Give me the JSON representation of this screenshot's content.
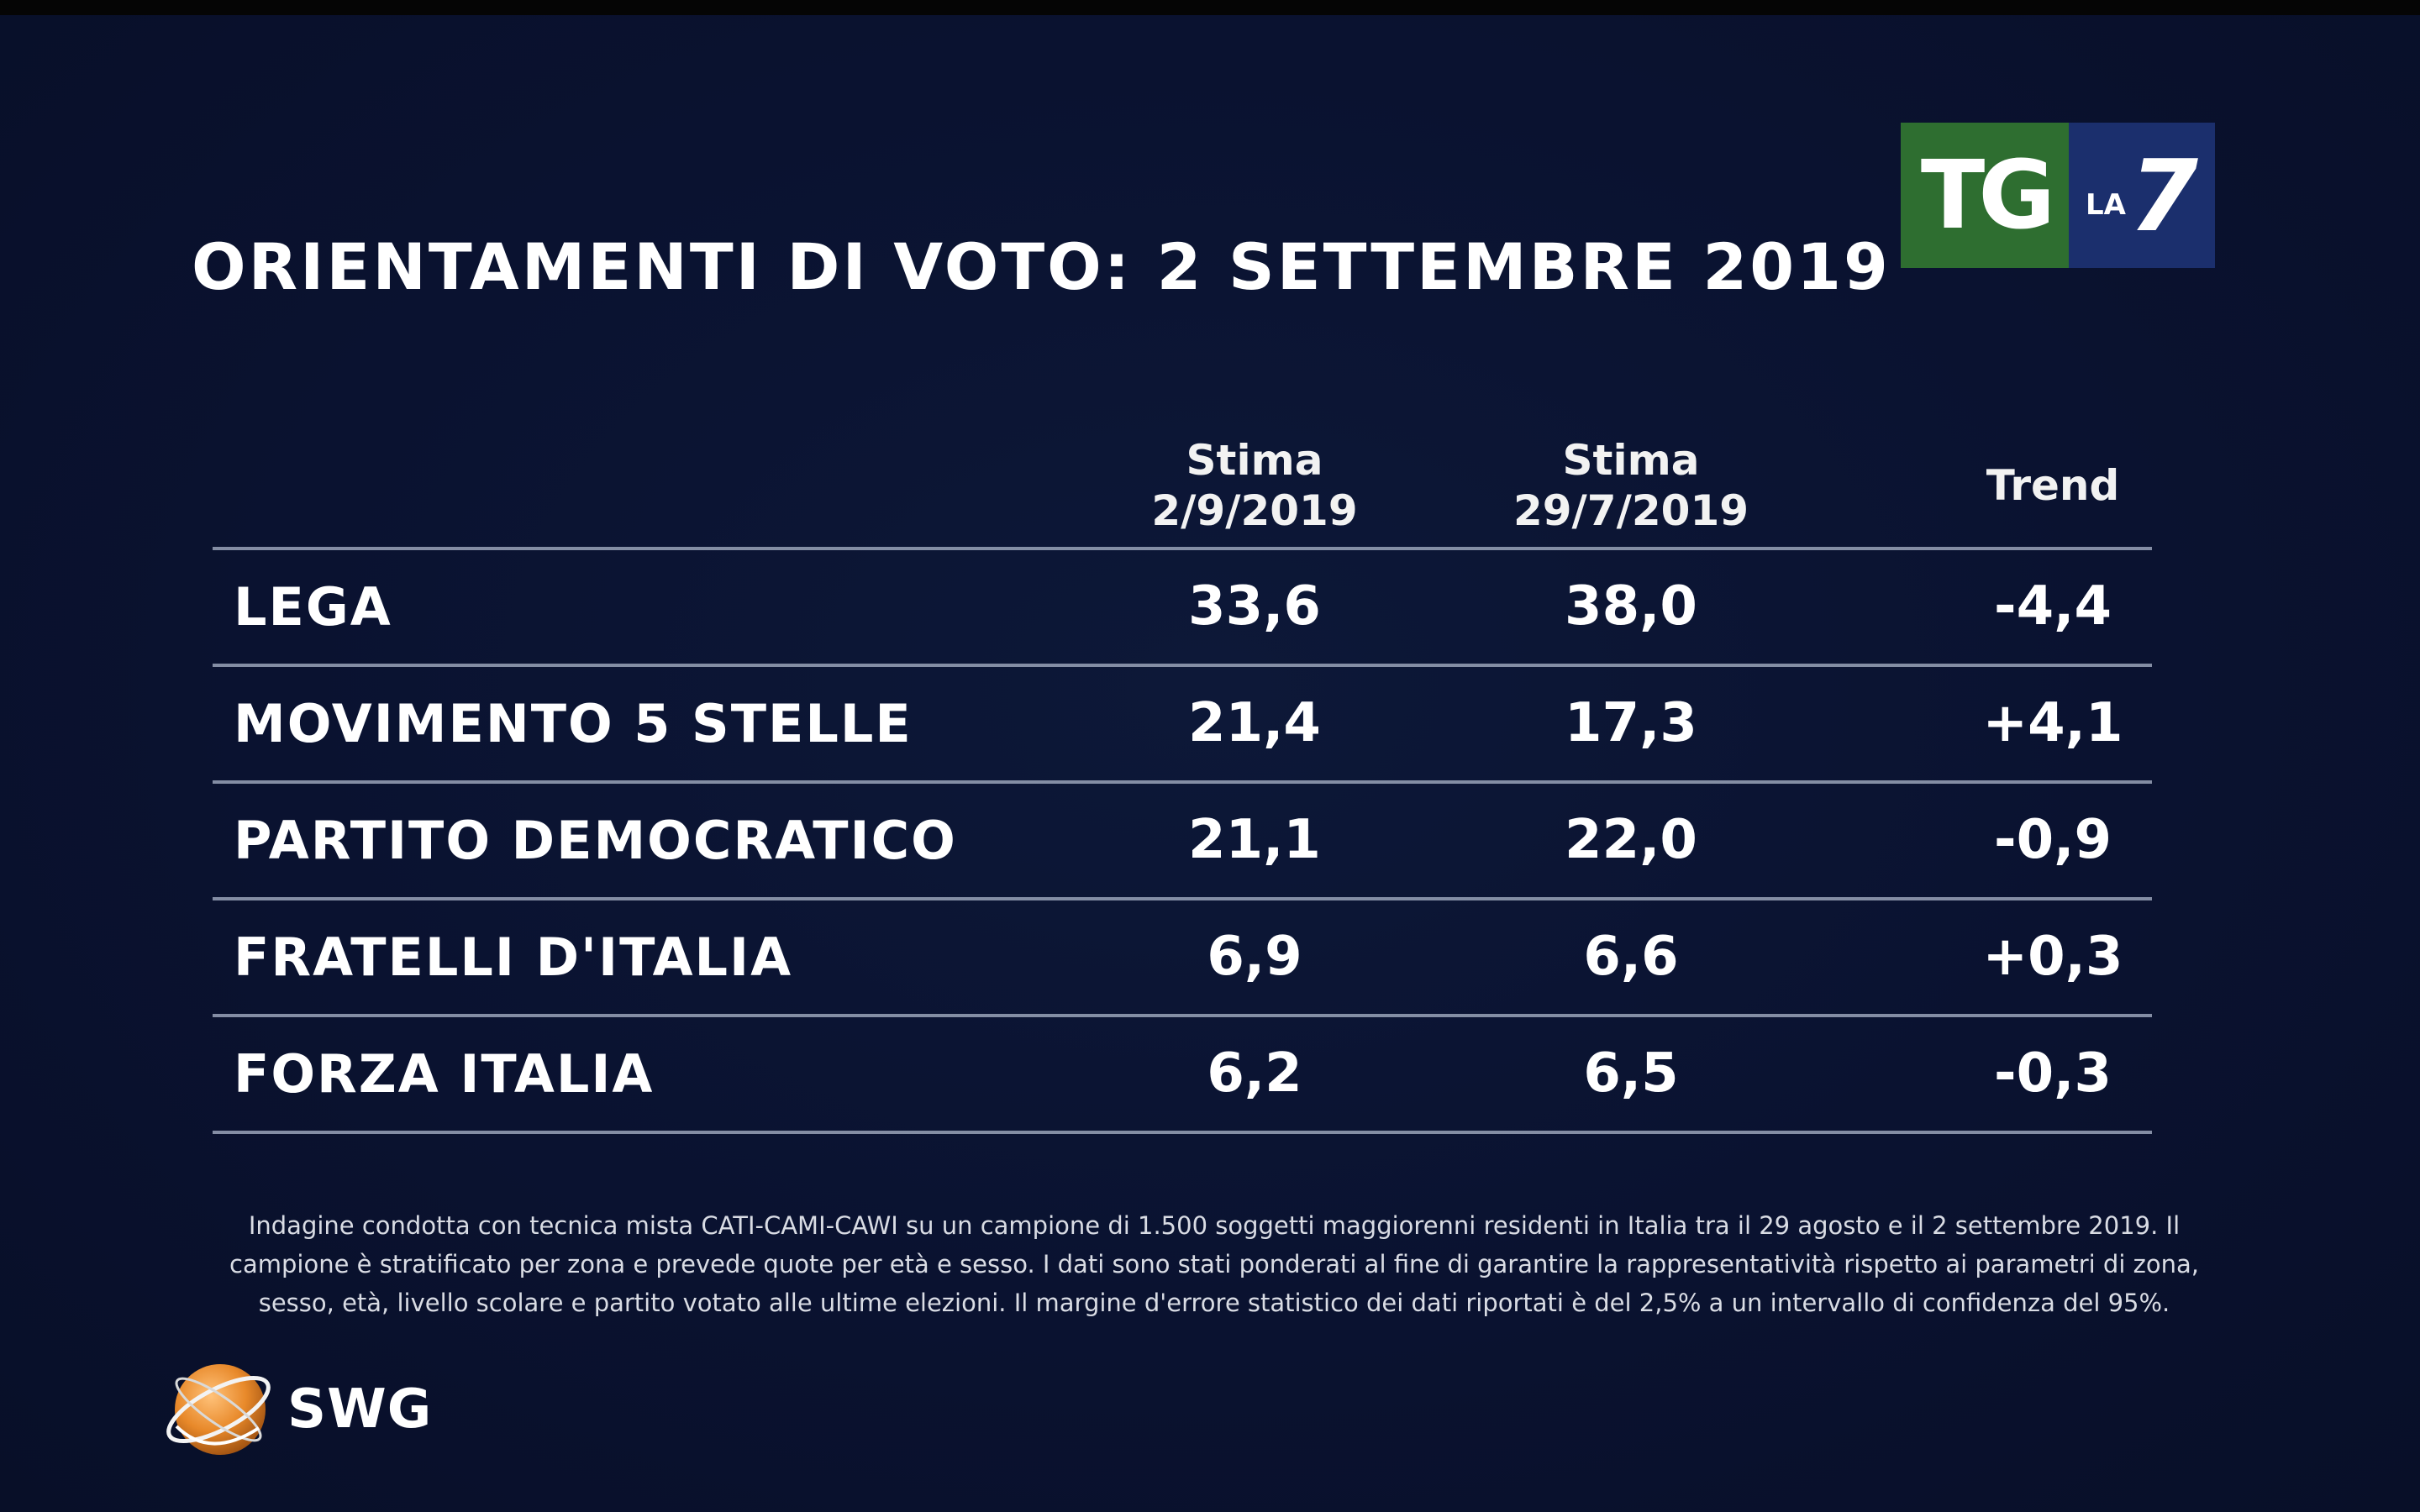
{
  "title": "ORIENTAMENTI DI VOTO: 2 SETTEMBRE 2019",
  "logo": {
    "tg": "TG",
    "la": "LA",
    "seven": "7"
  },
  "columns": [
    {
      "line1": "Stima",
      "line2": "2/9/2019"
    },
    {
      "line1": "Stima",
      "line2": "29/7/2019"
    },
    {
      "line1": "Trend",
      "line2": ""
    }
  ],
  "chart_data": {
    "type": "table",
    "title": "ORIENTAMENTI DI VOTO: 2 SETTEMBRE 2019",
    "columns": [
      "Stima 2/9/2019",
      "Stima 29/7/2019",
      "Trend"
    ],
    "rows": [
      {
        "party": "LEGA",
        "stima_2_9_2019": "33,6",
        "stima_29_7_2019": "38,0",
        "trend": "-4,4"
      },
      {
        "party": "MOVIMENTO 5 STELLE",
        "stima_2_9_2019": "21,4",
        "stima_29_7_2019": "17,3",
        "trend": "+4,1"
      },
      {
        "party": "PARTITO DEMOCRATICO",
        "stima_2_9_2019": "21,1",
        "stima_29_7_2019": "22,0",
        "trend": "-0,9"
      },
      {
        "party": "FRATELLI D'ITALIA",
        "stima_2_9_2019": "6,9",
        "stima_29_7_2019": "6,6",
        "trend": "+0,3"
      },
      {
        "party": "FORZA ITALIA",
        "stima_2_9_2019": "6,2",
        "stima_29_7_2019": "6,5",
        "trend": "-0,3"
      }
    ]
  },
  "note": [
    "Indagine condotta con tecnica mista CATI-CAMI-CAWI su un campione di 1.500 soggetti maggiorenni residenti in Italia tra il 29 agosto e il  2 settembre 2019. Il",
    "campione è stratificato per zona e prevede quote per età e sesso. I dati sono stati ponderati al fine di garantire la rappresentatività rispetto ai parametri di zona,",
    "sesso, età, livello scolare e partito votato alle ultime elezioni. Il margine d'errore statistico dei dati riportati è del 2,5% a un intervallo di confidenza del 95%."
  ],
  "brand": {
    "name": "SWG"
  },
  "colors": {
    "background": "#0a1230",
    "tg_green": "#2e6e30",
    "la7_blue": "#1b2f6d",
    "rule": "#9aa3b8",
    "swg_orange": "#e8892a"
  }
}
